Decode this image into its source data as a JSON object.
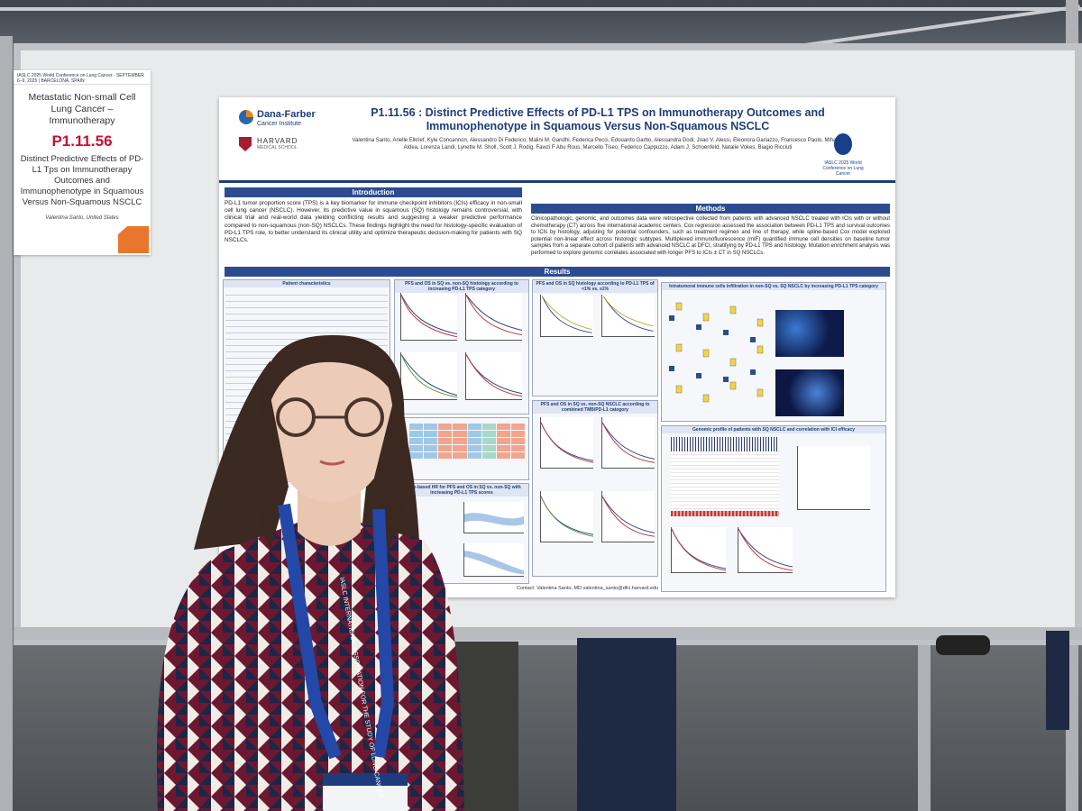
{
  "label_card": {
    "strip": "IASLC 2025 World Conference on Lung Cancer · SEPTEMBER 6–9, 2025 | BARCELONA, SPAIN",
    "topic": "Metastatic Non-small Cell Lung Cancer – Immunotherapy",
    "code": "P1.11.56",
    "title": "Distinct Predictive Effects of PD-L1 Tps on Immunotherapy Outcomes and Immunophenotype in Squamous Versus Non-Squamous NSCLC",
    "presenter": "Valentina Santo, United States"
  },
  "poster": {
    "df_name": "Dana-Farber",
    "df_sub": "Cancer Institute",
    "harvard_name": "HARVARD",
    "harvard_sub": "MEDICAL SCHOOL",
    "title": "P1.11.56 : Distinct Predictive Effects of PD-L1 TPS on Immunotherapy Outcomes and Immunophenotype in Squamous Versus Non-Squamous NSCLC",
    "authors": "Valentina Santo, Arielle Elkrief, Kyle Concannon, Alessandro Di Federico, Malini M. Gandhi, Federica Pecci, Edouardo Garbo, Alessandra Dodi, Joao V. Alessi, Eleonora Gariazzo, Francesco Paolo, Mihaela Aldea, Lorenza Landi, Lynette M. Sholl, Scott J. Rodig, Fawzi F Abu Rous, Marcello Tiseo, Federico Cappuzzo, Adam J. Schoenfeld, Natalie Vokes, Biagio Ricciuti",
    "iaslc_text": "IASLC 2025 World Conference on Lung Cancer",
    "intro_header": "Introduction",
    "intro_text": "PD-L1 tumor proportion score (TPS) is a key biomarker for immune checkpoint inhibitors (ICIs) efficacy in non-small cell lung cancer (NSCLC). However, its predictive value in squamous (SQ) histology remains controversial, with clinical trial and real-world data yielding conflicting results and suggesting a weaker predictive performance compared to non-squamous (non-SQ) NSCLCs. These findings highlight the need for histology-specific evaluation of PD-L1 TPS role, to better understand its clinical utility and optimize therapeutic decision-making for patients with SQ NSCLCs.",
    "methods_header": "Methods",
    "methods_text": "Clinicopathologic, genomic, and outcomes data were retrospective collected from patients with advanced NSCLC treated with ICIs with or without chemotherapy (CT) across five international academic centers. Cox regression assessed the association between PD-L1 TPS and survival outcomes to ICIs by histology, adjusting for potential confounders, such as treatment regimen and line of therapy, while spline-based Cox model explored potential non-linear effect across histologic subtypes. Multiplexed immunofluorescence (mIF) quantified immune cell densities on baseline tumor samples from a separate cohort of patients with advanced NSCLC at DFCI, stratifying by PD-L1 TPS and histology. Mutation enrichment analysis was performed to explore genomic correlates associated with longer PFS to ICIs ± CT in SQ NSCLCs.",
    "results_header": "Results",
    "table_title": "Patient characteristics",
    "panel1_title": "PFS and OS in SQ vs. non-SQ histology according to increasing PD-L1 TPS category",
    "panel2_title": "PFS and OS in SQ histology according to PD-L1 TPS of <1% vs. ≥1%",
    "panel3_title": "Intratumoral immune cells infiltration in non-SQ vs. SQ NSCLC by increasing PD-L1 TPS category",
    "panel4_title": "PFS and OS in SQ vs. non-SQ NSCLC according to combined TMB/PD-L1 category",
    "panel5_title": "Genomic profile of patients with SQ NSCLC and correlation with ICI efficacy",
    "panel6_title": "Spline-based HR for PFS and OS in SQ vs. non-SQ with increasing PD-L1 TPS scores",
    "contact": "Contact: Valentina Santo, MD valentina_santo@dfci.harvard.edu"
  },
  "badge": {
    "lanyard_text": "IASLC INTERNATIONAL ASSOCIATION FOR THE STUDY OF LUNG CANCER"
  },
  "colors": {
    "poster_blue": "#2c4c92",
    "code_red": "#c8102e",
    "lanyard_blue": "#2348a8"
  }
}
